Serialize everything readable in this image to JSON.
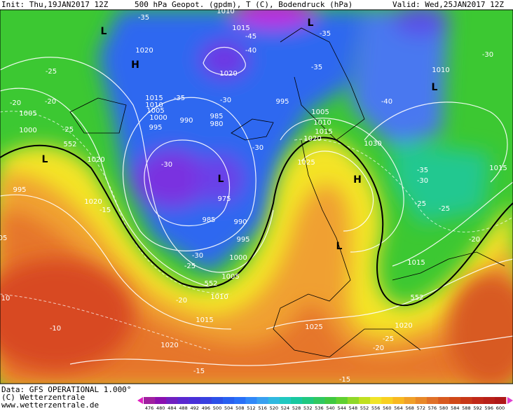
{
  "header": {
    "init": "Init: Thu,19JAN2017 12Z",
    "title": "500 hPa Geopot. (gpdm), T (C), Bodendruck (hPa)",
    "valid": "Valid: Wed,25JAN2017 12Z"
  },
  "footer": {
    "data": "Data: GFS OPERATIONAL 1.000°",
    "copyright": "(C) Wetterzentrale",
    "url": "www.wetterzentrale.de"
  },
  "colorbar": {
    "labels": [
      476,
      480,
      484,
      488,
      492,
      496,
      500,
      504,
      508,
      512,
      516,
      520,
      524,
      528,
      532,
      536,
      540,
      544,
      548,
      552,
      556,
      560,
      564,
      568,
      572,
      576,
      580,
      584,
      588,
      592,
      596,
      600
    ]
  },
  "map": {
    "labels": [
      "1010",
      "-35",
      "L",
      "1015",
      "-45",
      "L",
      "-35",
      "1020",
      "-40",
      "H",
      "-25",
      "1020",
      "-35",
      "1010",
      "-30",
      "L",
      "1015",
      "-35",
      "1010",
      "-30",
      "995",
      "-40",
      "-20",
      "-20",
      "1005",
      "1000",
      "990",
      "985",
      "980",
      "1005",
      "1005",
      "1010",
      "995",
      "-25",
      "1015",
      "1000",
      "552",
      "1020",
      "1030",
      "-30",
      "L",
      "1020",
      "1025",
      "-30",
      "1015",
      "-35",
      "-30",
      "H",
      "L",
      "995",
      "975",
      "1020",
      "-15",
      "-25",
      "-25",
      "985",
      "990",
      "05",
      "995",
      "L",
      "-20",
      "1000",
      "-30",
      "1015",
      "-25",
      "1005",
      "552",
      "1010",
      "-20",
      "552",
      "10",
      "1015",
      "1025",
      "1020",
      "-10",
      "-25",
      "1020",
      "-20",
      "-15",
      "-15"
    ]
  }
}
